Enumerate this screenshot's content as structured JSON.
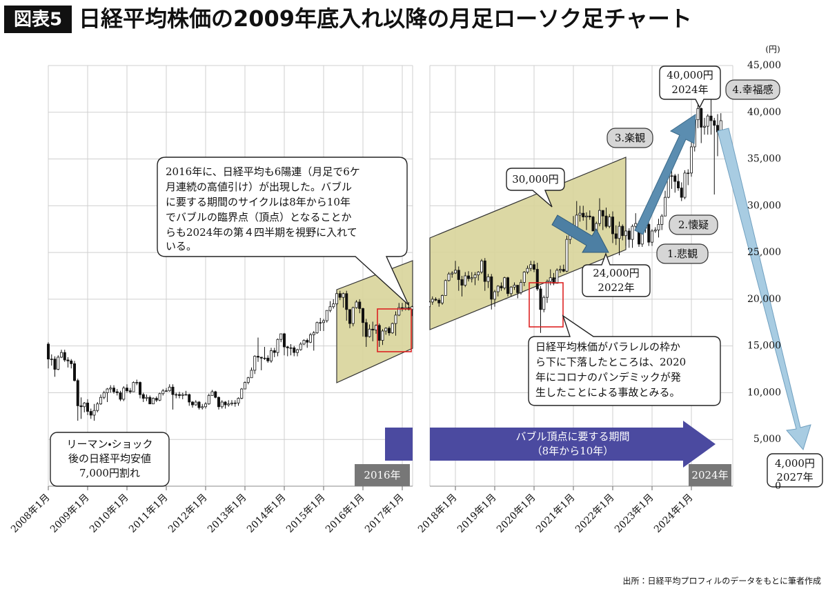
{
  "chart_data": {
    "type": "candlestick",
    "title_tag": "図表5",
    "title": "日経平均株価の2009年底入れ以降の月足ローソク足チャート",
    "y_unit": "(円)",
    "ylim": [
      0,
      45000
    ],
    "yticks": [
      0,
      {
        "value": 5000,
        "label": "5,000"
      },
      {
        "value": 10000,
        "label": "10,000"
      },
      {
        "value": 15000,
        "label": "15,000"
      },
      {
        "value": 20000,
        "label": "20,000"
      },
      {
        "value": 25000,
        "label": "25,000"
      },
      {
        "value": 30000,
        "label": "30,000"
      },
      {
        "value": 35000,
        "label": "35,000"
      },
      {
        "value": 40000,
        "label": "40,000"
      },
      {
        "value": 45000,
        "label": "45,000"
      }
    ],
    "grid": true,
    "up_color": "#ffffff",
    "down_color": "#111111",
    "categories": [
      "2008年1月",
      null,
      null,
      null,
      null,
      null,
      null,
      null,
      null,
      null,
      null,
      null,
      "2009年1月",
      null,
      null,
      null,
      null,
      null,
      null,
      null,
      null,
      null,
      null,
      null,
      "2010年1月",
      null,
      null,
      null,
      null,
      null,
      null,
      null,
      null,
      null,
      null,
      null,
      "2011年1月",
      null,
      null,
      null,
      null,
      null,
      null,
      null,
      null,
      null,
      null,
      null,
      "2012年1月",
      null,
      null,
      null,
      null,
      null,
      null,
      null,
      null,
      null,
      null,
      null,
      "2013年1月",
      null,
      null,
      null,
      null,
      null,
      null,
      null,
      null,
      null,
      null,
      null,
      "2014年1月",
      null,
      null,
      null,
      null,
      null,
      null,
      null,
      null,
      null,
      null,
      null,
      "2015年1月",
      null,
      null,
      null,
      null,
      null,
      null,
      null,
      null,
      null,
      null,
      null,
      "2016年1月",
      null,
      null,
      null,
      null,
      null,
      null,
      null,
      null,
      null,
      null,
      null,
      "2017年1月",
      null,
      null,
      null,
      null,
      null,
      null,
      null,
      null,
      null,
      null,
      null,
      "2018年1月",
      null,
      null,
      null,
      null,
      null,
      null,
      null,
      null,
      null,
      null,
      null,
      "2019年1月",
      null,
      null,
      null,
      null,
      null,
      null,
      null,
      null,
      null,
      null,
      null,
      "2020年1月",
      null,
      null,
      null,
      null,
      null,
      null,
      null,
      null,
      null,
      null,
      null,
      "2021年1月",
      null,
      null,
      null,
      null,
      null,
      null,
      null,
      null,
      null,
      null,
      null,
      "2022年1月",
      null,
      null,
      null,
      null,
      null,
      null,
      null,
      null,
      null,
      null,
      null,
      "2023年1月",
      null,
      null,
      null,
      null,
      null,
      null,
      null,
      null,
      null,
      null,
      null,
      "2024年1月",
      null,
      null,
      null,
      null,
      null,
      null,
      null,
      null,
      null
    ],
    "open": [
      15200,
      13600,
      13600,
      12500,
      13800,
      14300,
      13500,
      13400,
      13100,
      11300,
      8600,
      8500,
      8900,
      8000,
      7600,
      8100,
      8800,
      9500,
      10000,
      10400,
      10500,
      10100,
      10000,
      9300,
      10500,
      10200,
      10100,
      11100,
      11100,
      9800,
      9400,
      9500,
      8800,
      9400,
      9200,
      9900,
      10200,
      10200,
      10600,
      9800,
      9800,
      9700,
      9800,
      9800,
      9000,
      8700,
      9000,
      8400,
      8500,
      8800,
      9700,
      10100,
      9500,
      8500,
      9000,
      8700,
      8800,
      8900,
      8900,
      9400,
      10400,
      11100,
      11600,
      12400,
      13900,
      13800,
      13700,
      13700,
      13400,
      14500,
      14300,
      15700,
      16300,
      14900,
      14800,
      14800,
      14300,
      14600,
      15200,
      15600,
      15400,
      16200,
      16400,
      17500,
      17500,
      17700,
      18800,
      19200,
      19500,
      20600,
      20200,
      20600,
      18900,
      17400,
      19100,
      19700,
      19000,
      17500,
      16000,
      16800,
      16700,
      17200,
      15600,
      16600,
      16900,
      16400,
      17400,
      18300,
      19100,
      19000,
      19100,
      18900,
      19200,
      19700,
      20000,
      19900,
      19600,
      20400,
      22000,
      22700,
      22800,
      23100,
      22100,
      21500,
      22500,
      22200,
      22300,
      22600,
      22900,
      24100,
      21900,
      22400,
      20000,
      20800,
      21400,
      21200,
      22300,
      20600,
      21300,
      21500,
      20700,
      21800,
      22900,
      23300,
      23700,
      23200,
      21100,
      18900,
      20200,
      21900,
      22300,
      21700,
      23100,
      23200,
      23000,
      26400,
      27400,
      27700,
      29000,
      29200,
      28800,
      28900,
      28800,
      27300,
      28100,
      29500,
      28900,
      27800,
      28800,
      27000,
      26500,
      27800,
      26800,
      27300,
      26400,
      27800,
      28100,
      25900,
      27600,
      28000,
      26100,
      27300,
      27400,
      28000,
      28900,
      30900,
      33200,
      33200,
      32600,
      31900,
      30900,
      33500,
      33500,
      36300,
      39200,
      40400,
      38400,
      38500,
      39600,
      39100,
      38600,
      37900
    ],
    "high": [
      15400,
      14100,
      13900,
      14000,
      14600,
      14600,
      13800,
      13600,
      13400,
      11500,
      9500,
      9000,
      9300,
      8300,
      8800,
      9000,
      9800,
      10200,
      10500,
      10800,
      10800,
      10400,
      10200,
      10700,
      10900,
      10500,
      11200,
      11400,
      11200,
      10000,
      9800,
      9700,
      9500,
      9600,
      10000,
      10400,
      10500,
      10900,
      10900,
      10000,
      10100,
      10000,
      10200,
      9900,
      9100,
      9200,
      9100,
      8800,
      9000,
      9900,
      10300,
      10200,
      9600,
      9200,
      9100,
      9200,
      9200,
      9200,
      9500,
      10500,
      11200,
      11700,
      12700,
      14000,
      15900,
      13800,
      14900,
      14000,
      14800,
      14800,
      15800,
      16300,
      16400,
      15000,
      15200,
      15000,
      14700,
      15400,
      15700,
      15800,
      16400,
      16600,
      17600,
      18000,
      17900,
      18800,
      19800,
      20000,
      20700,
      20900,
      20700,
      20900,
      18900,
      19200,
      19900,
      20000,
      19100,
      17900,
      17300,
      17600,
      17300,
      17400,
      16800,
      17000,
      17100,
      17500,
      18700,
      19600,
      19600,
      19700,
      19700,
      19300,
      19800,
      20300,
      20200,
      20100,
      20500,
      22100,
      22900,
      23000,
      24100,
      23500,
      22500,
      22900,
      23000,
      22900,
      22900,
      23000,
      24300,
      24400,
      22700,
      22700,
      21000,
      21500,
      21800,
      22400,
      22400,
      21400,
      21800,
      21500,
      22100,
      23000,
      23600,
      24100,
      24100,
      23900,
      21400,
      20400,
      22100,
      23200,
      22800,
      23300,
      23600,
      23700,
      26800,
      27600,
      28900,
      30500,
      30000,
      30000,
      29300,
      29500,
      28900,
      28300,
      30800,
      29500,
      29800,
      29100,
      29400,
      27900,
      28300,
      28000,
      27400,
      27600,
      28000,
      29200,
      28400,
      27600,
      28500,
      28200,
      27500,
      27700,
      28600,
      29100,
      31600,
      33800,
      33800,
      33400,
      33400,
      32500,
      33800,
      33900,
      36900,
      39400,
      41100,
      40500,
      39400,
      39800,
      42200,
      39400,
      39800,
      39900
    ],
    "low": [
      12600,
      12900,
      11700,
      12400,
      13700,
      13300,
      12700,
      12600,
      11200,
      7000,
      7200,
      7900,
      7600,
      7200,
      7000,
      7900,
      8700,
      9300,
      9000,
      10000,
      9900,
      9700,
      9100,
      9100,
      10000,
      9900,
      10100,
      10800,
      9400,
      9000,
      9100,
      8800,
      8800,
      9000,
      9100,
      9700,
      10100,
      10100,
      8200,
      9400,
      9400,
      9300,
      9700,
      8600,
      8400,
      8600,
      8200,
      8200,
      8300,
      8700,
      9700,
      9400,
      8200,
      8300,
      8300,
      8500,
      8600,
      8500,
      8600,
      9300,
      10400,
      10900,
      11600,
      12000,
      13300,
      12400,
      13500,
      13200,
      13200,
      13800,
      13900,
      15400,
      14000,
      13900,
      14000,
      13900,
      13900,
      14500,
      15100,
      14800,
      15300,
      14500,
      16300,
      16600,
      16600,
      17500,
      18600,
      19000,
      19300,
      19900,
      19100,
      17700,
      16900,
      17100,
      19000,
      18500,
      16000,
      14900,
      15900,
      15500,
      16300,
      14900,
      15100,
      16200,
      16100,
      16300,
      16100,
      18200,
      18700,
      18800,
      18800,
      18200,
      19200,
      19400,
      19800,
      19200,
      19400,
      20400,
      21900,
      22300,
      22700,
      20900,
      20300,
      21300,
      21900,
      21800,
      21500,
      22000,
      22700,
      20900,
      21200,
      18900,
      19200,
      20300,
      20900,
      21000,
      20300,
      20300,
      21000,
      20100,
      20500,
      21400,
      22700,
      23000,
      22900,
      20900,
      16400,
      18600,
      19600,
      21500,
      21500,
      21700,
      22800,
      22900,
      22900,
      25900,
      27000,
      27700,
      28300,
      28400,
      27400,
      28500,
      27300,
      26900,
      27800,
      27400,
      27600,
      27600,
      26000,
      25800,
      24700,
      26300,
      25700,
      25500,
      25500,
      27600,
      25600,
      25600,
      27100,
      25700,
      25700,
      27100,
      26600,
      27400,
      28900,
      30800,
      31800,
      31400,
      31600,
      30500,
      30700,
      32200,
      33100,
      35800,
      38300,
      36700,
      37600,
      37600,
      37600,
      31200,
      35300,
      37700
    ],
    "close": [
      13600,
      13600,
      12500,
      13800,
      14300,
      13500,
      13400,
      13100,
      11300,
      8600,
      8500,
      8900,
      8000,
      7600,
      8100,
      8800,
      9500,
      10000,
      10400,
      10500,
      10100,
      10000,
      9300,
      10500,
      10200,
      10100,
      11100,
      11100,
      9800,
      9400,
      9500,
      8800,
      9400,
      9200,
      9900,
      10200,
      10200,
      10600,
      9800,
      9800,
      9700,
      9800,
      9800,
      9000,
      8700,
      9000,
      8400,
      8500,
      8800,
      9700,
      10100,
      9500,
      8500,
      9000,
      8700,
      8800,
      8900,
      8900,
      9400,
      10400,
      11100,
      11600,
      12400,
      13900,
      13800,
      13700,
      13700,
      13400,
      14500,
      14300,
      15700,
      16300,
      14900,
      14800,
      14800,
      14300,
      14600,
      15200,
      15600,
      15400,
      16200,
      16400,
      17500,
      17500,
      17700,
      18800,
      19200,
      19500,
      20600,
      20200,
      20600,
      18900,
      17400,
      19100,
      19700,
      19000,
      17500,
      16000,
      16800,
      16700,
      17200,
      15600,
      16600,
      16900,
      16400,
      17400,
      18300,
      19100,
      19000,
      19100,
      18900,
      19200,
      19700,
      20000,
      19900,
      19600,
      20400,
      22000,
      22700,
      22800,
      23100,
      22100,
      21500,
      22500,
      22200,
      22300,
      22600,
      22900,
      24100,
      21900,
      22400,
      20000,
      20800,
      21400,
      21200,
      22300,
      20600,
      21300,
      21500,
      20700,
      21800,
      22900,
      23300,
      23700,
      23200,
      21100,
      18900,
      20200,
      21900,
      22300,
      21700,
      23100,
      23200,
      23000,
      26400,
      27400,
      27700,
      29000,
      29200,
      28800,
      28900,
      28800,
      27300,
      28100,
      29500,
      28900,
      27800,
      28800,
      27000,
      26500,
      27800,
      26800,
      27300,
      26400,
      27800,
      28100,
      25900,
      27600,
      28000,
      26100,
      27300,
      27400,
      28000,
      28900,
      30900,
      33200,
      33200,
      32600,
      31900,
      30900,
      33500,
      33500,
      36300,
      39200,
      40400,
      38400,
      38500,
      39600,
      39100,
      38600,
      37900,
      39100
    ],
    "annotations": {
      "callout_2016": [
        "2016年に、日経平均も6陽連（月足で6ケ",
        "月連続の高値引け）が出現した。バブル",
        "に要する期間のサイクルは8年から10年",
        "でバブルの臨界点（頂点）となることか",
        "らも2024年の第４四半期を視野に入れて",
        "いる。"
      ],
      "price_30000": "30,000円",
      "low_2022": [
        "24,000円",
        "2022年"
      ],
      "peak_2024": [
        "40,000円",
        "2024年"
      ],
      "target_2027": [
        "4,000円",
        "2027年"
      ],
      "phases": [
        "4.幸福感",
        "3.楽観",
        "2.懐疑",
        "1.悲観"
      ],
      "callout_corona": [
        "日経平均株価がパラレルの枠か",
        "ら下に下落したところは、2020",
        "年にコロナのパンデミックが発",
        "生したことによる事故とみる。"
      ],
      "callout_lehman": [
        "リーマン・ショック",
        "後の日経平均安値",
        "7,000円割れ"
      ],
      "bubble_period": [
        "バブル頂点に要する期間",
        "（8年から10年）"
      ],
      "year_2016": "2016年",
      "year_2024": "2024年"
    },
    "source": "出所：日経平均プロフィルのデータをもとに筆者作成"
  }
}
